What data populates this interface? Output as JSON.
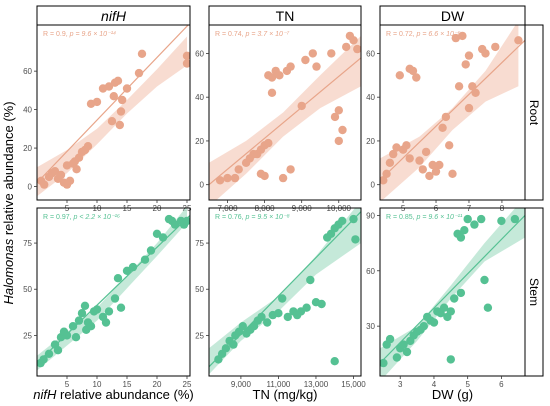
{
  "y_axis_title": {
    "italic": "Halomonas",
    "rest": " relative abundance (%)"
  },
  "row_labels": [
    "Root",
    "Stem"
  ],
  "col_labels": [
    "nifH",
    "TN",
    "DW"
  ],
  "x_titles": [
    {
      "italic": "nifH",
      "rest": " relative abundance (%)"
    },
    {
      "italic": "",
      "rest": "TN (mg/kg)"
    },
    {
      "italic": "",
      "rest": "DW (g)"
    }
  ],
  "colors": {
    "root": "#e8a58a",
    "root_band": "#f6d3c6",
    "stem": "#55c193",
    "stem_band": "#b6e3cf"
  },
  "chart_data": [
    {
      "type": "scatter",
      "row": "Root",
      "col": "nifH",
      "stats": {
        "r": "R = 0.9, ",
        "p": "p = 9.6 × 10⁻¹⁴"
      },
      "xlim": [
        0,
        25.5
      ],
      "ylim": [
        -7,
        84
      ],
      "xticks": [
        5,
        10,
        15,
        20,
        25
      ],
      "xtick_labels": [
        "5",
        "10",
        "15",
        "20",
        "25"
      ],
      "yticks": [
        0,
        20,
        40,
        60
      ],
      "ytick_labels": [
        "0",
        "20",
        "40",
        "60"
      ],
      "fit": [
        2,
        85
      ],
      "band": [
        [
          0,
          -5,
          10
        ],
        [
          5,
          7,
          19
        ],
        [
          10,
          22,
          30
        ],
        [
          15,
          38,
          45
        ],
        [
          20,
          52,
          61
        ],
        [
          25,
          63,
          78
        ]
      ],
      "points": [
        [
          0.7,
          3
        ],
        [
          1.2,
          1
        ],
        [
          2,
          5
        ],
        [
          2.5,
          7
        ],
        [
          3,
          8
        ],
        [
          3.5,
          4
        ],
        [
          4,
          6
        ],
        [
          4.5,
          2
        ],
        [
          5,
          1
        ],
        [
          5.5,
          3
        ],
        [
          5,
          11
        ],
        [
          6,
          12
        ],
        [
          6.3,
          13
        ],
        [
          6.6,
          9
        ],
        [
          7,
          15
        ],
        [
          7.5,
          18
        ],
        [
          8,
          19
        ],
        [
          8.5,
          21
        ],
        [
          9,
          43
        ],
        [
          10,
          44
        ],
        [
          11,
          51
        ],
        [
          12,
          52
        ],
        [
          12.5,
          34
        ],
        [
          12.8,
          47
        ],
        [
          13,
          54
        ],
        [
          13.5,
          55
        ],
        [
          13.8,
          32
        ],
        [
          14,
          39
        ],
        [
          14.2,
          45
        ],
        [
          15,
          51
        ],
        [
          17,
          59
        ],
        [
          17.5,
          69
        ],
        [
          25,
          68
        ],
        [
          25,
          64
        ]
      ]
    },
    {
      "type": "scatter",
      "row": "Root",
      "col": "TN",
      "stats": {
        "r": "R = 0.74, ",
        "p": "p = 3.7 × 10⁻⁷"
      },
      "xlim": [
        6500,
        10600
      ],
      "ylim": [
        -7,
        73
      ],
      "xticks": [
        7000,
        8000,
        9000,
        10000
      ],
      "xtick_labels": [
        "7,000",
        "8,000",
        "9,000",
        "10,000"
      ],
      "yticks": [
        0,
        20,
        40,
        60
      ],
      "ytick_labels": [
        "0",
        "20",
        "40",
        "60"
      ],
      "fit": [
        0,
        58
      ],
      "band": [
        [
          6500,
          -10,
          10
        ],
        [
          7500,
          5,
          20
        ],
        [
          8500,
          22,
          33
        ],
        [
          9500,
          35,
          50
        ],
        [
          10600,
          45,
          68
        ]
      ],
      "points": [
        [
          6800,
          2
        ],
        [
          7000,
          3
        ],
        [
          7200,
          3
        ],
        [
          7300,
          7
        ],
        [
          7500,
          10
        ],
        [
          7600,
          12
        ],
        [
          7700,
          14
        ],
        [
          7800,
          14
        ],
        [
          7900,
          16
        ],
        [
          8000,
          18
        ],
        [
          8100,
          19
        ],
        [
          7900,
          5
        ],
        [
          8000,
          4
        ],
        [
          8100,
          50
        ],
        [
          8200,
          49
        ],
        [
          8300,
          52
        ],
        [
          8400,
          50
        ],
        [
          8200,
          42
        ],
        [
          8600,
          52
        ],
        [
          8700,
          54
        ],
        [
          8500,
          3
        ],
        [
          8700,
          7
        ],
        [
          9000,
          36
        ],
        [
          9100,
          57
        ],
        [
          9300,
          60
        ],
        [
          9400,
          54
        ],
        [
          9800,
          60
        ],
        [
          9900,
          31
        ],
        [
          10000,
          20
        ],
        [
          10100,
          25
        ],
        [
          10200,
          63
        ],
        [
          10300,
          68
        ],
        [
          10400,
          66
        ],
        [
          10500,
          62
        ],
        [
          10000,
          34
        ]
      ]
    },
    {
      "type": "scatter",
      "row": "Root",
      "col": "DW",
      "stats": {
        "r": "R = 0.72, ",
        "p": "p = 6.6 × 10⁻⁶"
      },
      "xlim": [
        4.3,
        8.7
      ],
      "ylim": [
        -7,
        73
      ],
      "xticks": [
        5,
        6,
        7,
        8
      ],
      "xtick_labels": [
        "5",
        "6",
        "7",
        "8"
      ],
      "yticks": [
        0,
        20,
        40,
        60
      ],
      "ytick_labels": [
        "0",
        "20",
        "40",
        "60"
      ],
      "fit": [
        2,
        66
      ],
      "band": [
        [
          4.3,
          -8,
          12
        ],
        [
          5.5,
          8,
          22
        ],
        [
          6.5,
          25,
          35
        ],
        [
          7.5,
          38,
          52
        ],
        [
          8.5,
          45,
          75
        ]
      ],
      "points": [
        [
          4.4,
          2
        ],
        [
          4.6,
          10
        ],
        [
          4.7,
          14
        ],
        [
          4.8,
          17
        ],
        [
          4.9,
          50
        ],
        [
          5,
          16
        ],
        [
          5.1,
          18
        ],
        [
          5.2,
          12
        ],
        [
          5.2,
          53
        ],
        [
          5.3,
          52
        ],
        [
          5.4,
          49
        ],
        [
          5.5,
          11
        ],
        [
          5.6,
          7
        ],
        [
          5.7,
          15
        ],
        [
          5.8,
          4
        ],
        [
          5.9,
          9
        ],
        [
          6,
          6
        ],
        [
          6.1,
          9
        ],
        [
          6.2,
          26
        ],
        [
          6.3,
          31
        ],
        [
          6.4,
          18
        ],
        [
          6.5,
          5
        ],
        [
          6.6,
          67
        ],
        [
          6.7,
          45
        ],
        [
          6.8,
          68
        ],
        [
          6.9,
          55
        ],
        [
          7,
          59
        ],
        [
          7,
          35
        ],
        [
          7.1,
          45
        ],
        [
          7.2,
          42
        ],
        [
          7.4,
          62
        ],
        [
          7.5,
          60
        ],
        [
          7.8,
          63
        ],
        [
          8.5,
          66
        ],
        [
          4.5,
          5
        ]
      ]
    },
    {
      "type": "scatter",
      "row": "Stem",
      "col": "nifH",
      "stats": {
        "r": "R = 0.97, ",
        "p": "p < 2.2 × 10⁻¹⁶"
      },
      "xlim": [
        0,
        25.5
      ],
      "ylim": [
        3,
        94
      ],
      "xticks": [
        5,
        10,
        15,
        20,
        25
      ],
      "xtick_labels": [
        "5",
        "10",
        "15",
        "20",
        "25"
      ],
      "yticks": [
        25,
        50,
        75
      ],
      "ytick_labels": [
        "25",
        "50",
        "75"
      ],
      "fit": [
        10,
        90
      ],
      "band": [
        [
          0,
          6,
          14
        ],
        [
          10,
          33,
          40
        ],
        [
          20,
          68,
          75
        ],
        [
          25,
          86,
          95
        ]
      ],
      "points": [
        [
          0.6,
          10
        ],
        [
          1.1,
          12
        ],
        [
          2,
          15
        ],
        [
          3,
          20
        ],
        [
          3.5,
          17
        ],
        [
          4,
          24
        ],
        [
          4.5,
          27
        ],
        [
          5,
          25
        ],
        [
          6,
          30
        ],
        [
          7,
          33
        ],
        [
          7.5,
          37
        ],
        [
          8,
          41
        ],
        [
          8.2,
          28
        ],
        [
          8.5,
          32
        ],
        [
          9,
          30
        ],
        [
          9.5,
          38
        ],
        [
          10,
          39
        ],
        [
          11,
          35
        ],
        [
          11.5,
          32
        ],
        [
          12,
          38
        ],
        [
          13,
          45
        ],
        [
          13.5,
          56
        ],
        [
          14,
          40
        ],
        [
          15,
          60
        ],
        [
          16,
          62
        ],
        [
          18,
          66
        ],
        [
          19,
          71
        ],
        [
          20,
          80
        ],
        [
          21,
          78
        ],
        [
          22,
          88
        ],
        [
          22.5,
          87
        ],
        [
          23,
          85
        ],
        [
          24,
          87
        ],
        [
          24.5,
          85
        ],
        [
          25,
          87
        ],
        [
          6.5,
          24
        ]
      ]
    },
    {
      "type": "scatter",
      "row": "Stem",
      "col": "TN",
      "stats": {
        "r": "R = 0.76, ",
        "p": "p = 9.5 × 10⁻⁸"
      },
      "xlim": [
        7300,
        15400
      ],
      "ylim": [
        3,
        94
      ],
      "xticks": [
        9000,
        11000,
        13000,
        15000
      ],
      "xtick_labels": [
        "9,000",
        "11,000",
        "13,000",
        "15,000"
      ],
      "yticks": [
        25,
        50,
        75
      ],
      "ytick_labels": [
        "25",
        "50",
        "75"
      ],
      "fit": [
        8,
        92
      ],
      "band": [
        [
          7300,
          4,
          18
        ],
        [
          9000,
          22,
          32
        ],
        [
          11000,
          38,
          46
        ],
        [
          13000,
          58,
          68
        ],
        [
          15400,
          75,
          98
        ]
      ],
      "points": [
        [
          7800,
          12
        ],
        [
          8000,
          15
        ],
        [
          8200,
          18
        ],
        [
          8400,
          22
        ],
        [
          8600,
          20
        ],
        [
          8700,
          25
        ],
        [
          8900,
          27
        ],
        [
          9100,
          30
        ],
        [
          9300,
          26
        ],
        [
          9500,
          28
        ],
        [
          9700,
          30
        ],
        [
          9900,
          33
        ],
        [
          10100,
          35
        ],
        [
          10400,
          32
        ],
        [
          10700,
          36
        ],
        [
          11000,
          37
        ],
        [
          11200,
          45
        ],
        [
          11500,
          35
        ],
        [
          11800,
          38
        ],
        [
          12000,
          36
        ],
        [
          12200,
          38
        ],
        [
          12500,
          40
        ],
        [
          13000,
          43
        ],
        [
          13300,
          42
        ],
        [
          13600,
          78
        ],
        [
          13800,
          80
        ],
        [
          14000,
          83
        ],
        [
          14200,
          85
        ],
        [
          14400,
          87
        ],
        [
          15000,
          88
        ],
        [
          15100,
          77
        ],
        [
          14000,
          11
        ],
        [
          12700,
          55
        ]
      ]
    },
    {
      "type": "scatter",
      "row": "Stem",
      "col": "DW",
      "stats": {
        "r": "R = 0.85, ",
        "p": "p = 9.6 × 10⁻¹¹"
      },
      "xlim": [
        2.4,
        6.7
      ],
      "ylim": [
        3,
        94
      ],
      "xticks": [
        3,
        4,
        5,
        6
      ],
      "xtick_labels": [
        "3",
        "4",
        "5",
        "6"
      ],
      "yticks": [
        30,
        60,
        90
      ],
      "ytick_labels": [
        "30",
        "60",
        "90"
      ],
      "fit": [
        10,
        90
      ],
      "band": [
        [
          2.4,
          0,
          18
        ],
        [
          3.5,
          22,
          30
        ],
        [
          4.5,
          45,
          52
        ],
        [
          5.5,
          65,
          75
        ],
        [
          6.7,
          78,
          100
        ]
      ],
      "points": [
        [
          2.5,
          10
        ],
        [
          2.6,
          20
        ],
        [
          2.7,
          23
        ],
        [
          2.9,
          13
        ],
        [
          3,
          18
        ],
        [
          3.1,
          20
        ],
        [
          3.2,
          16
        ],
        [
          3.3,
          22
        ],
        [
          3.4,
          25
        ],
        [
          3.5,
          27
        ],
        [
          3.6,
          28
        ],
        [
          3.7,
          30
        ],
        [
          3.8,
          35
        ],
        [
          3.9,
          33
        ],
        [
          4,
          32
        ],
        [
          4.1,
          38
        ],
        [
          4.2,
          37
        ],
        [
          4.3,
          40
        ],
        [
          4.4,
          35
        ],
        [
          4.5,
          38
        ],
        [
          4.6,
          45
        ],
        [
          4.7,
          80
        ],
        [
          4.8,
          78
        ],
        [
          4.9,
          82
        ],
        [
          5,
          88
        ],
        [
          5.2,
          85
        ],
        [
          5.4,
          88
        ],
        [
          5.5,
          55
        ],
        [
          5.6,
          40
        ],
        [
          4.5,
          12
        ],
        [
          6,
          87
        ],
        [
          6.4,
          88
        ],
        [
          4.8,
          48
        ]
      ]
    }
  ]
}
